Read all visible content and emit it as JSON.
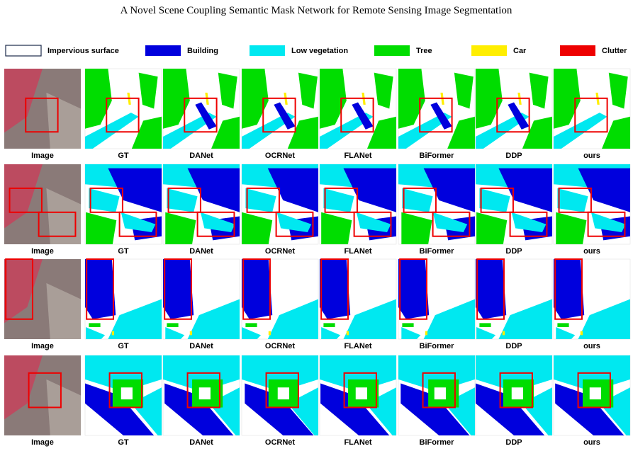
{
  "title": "A Novel Scene Coupling Semantic Mask Network for Remote Sensing Image Segmentation",
  "legend": [
    {
      "label": "Impervious surface",
      "color": "#ffffff"
    },
    {
      "label": "Building",
      "color": "#0000dd"
    },
    {
      "label": "Low vegetation",
      "color": "#00e8f0"
    },
    {
      "label": "Tree",
      "color": "#00dd00"
    },
    {
      "label": "Car",
      "color": "#ffee00"
    },
    {
      "label": "Clutter",
      "color": "#ee0000"
    }
  ],
  "rows": [
    {
      "labels": [
        "Image",
        "GT",
        "DANet",
        "OCRNet",
        "FLANet",
        "BiFormer",
        "DDP",
        "ours"
      ]
    },
    {
      "labels": [
        "Image",
        "GT",
        "DANet",
        "OCRNet",
        "FLANet",
        "BiFormer",
        "DDP",
        "ours"
      ]
    },
    {
      "labels": [
        "Image",
        "GT",
        "DANet",
        "OCRNet",
        "FLANet",
        "BiFormer",
        "DDP",
        "ours"
      ]
    },
    {
      "labels": [
        "Image",
        "GT",
        "DANet",
        "OCRNet",
        "FLANet",
        "BiFormer",
        "DDP",
        "ours"
      ]
    }
  ]
}
